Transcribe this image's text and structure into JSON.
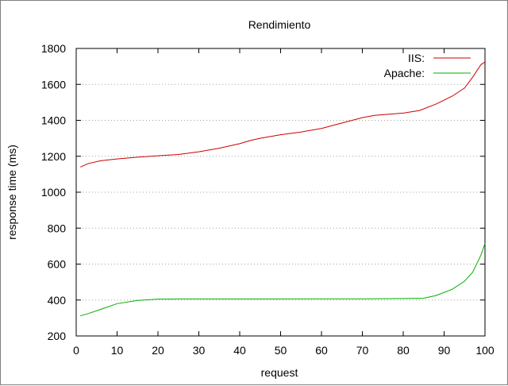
{
  "chart_data": {
    "type": "line",
    "title": "Rendimiento",
    "xlabel": "request",
    "ylabel": "response time (ms)",
    "xlim": [
      0,
      100
    ],
    "ylim": [
      200,
      1800
    ],
    "xticks": [
      0,
      10,
      20,
      30,
      40,
      50,
      60,
      70,
      80,
      90,
      100
    ],
    "yticks": [
      200,
      400,
      600,
      800,
      1000,
      1200,
      1400,
      1600,
      1800
    ],
    "grid": true,
    "legend_position": "top-right",
    "series": [
      {
        "name": "IIS:",
        "color": "#cc0000",
        "x": [
          1,
          3,
          6,
          10,
          15,
          20,
          25,
          30,
          35,
          40,
          43,
          45,
          50,
          55,
          60,
          65,
          70,
          73,
          80,
          84,
          88,
          92,
          95,
          97,
          99,
          100
        ],
        "y": [
          1140,
          1160,
          1175,
          1185,
          1195,
          1203,
          1210,
          1225,
          1245,
          1270,
          1290,
          1300,
          1320,
          1335,
          1355,
          1385,
          1415,
          1428,
          1440,
          1455,
          1490,
          1535,
          1580,
          1640,
          1710,
          1725
        ]
      },
      {
        "name": "Apache:",
        "color": "#00b000",
        "x": [
          1,
          3,
          6,
          10,
          15,
          20,
          25,
          30,
          40,
          50,
          60,
          70,
          80,
          85,
          88,
          92,
          95,
          97,
          99,
          100
        ],
        "y": [
          312,
          325,
          348,
          380,
          398,
          405,
          406,
          406,
          406,
          406,
          407,
          407,
          408,
          410,
          425,
          460,
          505,
          555,
          650,
          715
        ]
      }
    ]
  }
}
